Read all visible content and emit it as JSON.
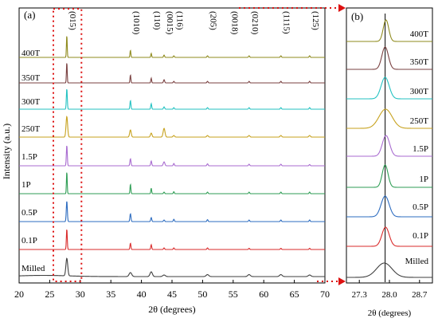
{
  "figure": {
    "panel_a_label": "(a)",
    "panel_b_label": "(b)"
  },
  "chart_data": [
    {
      "type": "line",
      "panel": "(a)",
      "xlabel": "2θ (degrees)",
      "ylabel": "Intensity (a.u.)",
      "xlim": [
        20,
        70
      ],
      "xticks": [
        20,
        25,
        30,
        35,
        40,
        45,
        50,
        55,
        60,
        65,
        70
      ],
      "grid": false,
      "highlight_region_2theta": [
        25.6,
        30.2
      ],
      "peak_annotations": [
        {
          "label": "(015)",
          "x": 27.8
        },
        {
          "label": "(1010)",
          "x": 38.2
        },
        {
          "label": "(110)",
          "x": 41.6
        },
        {
          "label": "(0015)",
          "x": 43.7
        },
        {
          "label": "(116)",
          "x": 45.3
        },
        {
          "label": "(205)",
          "x": 50.8
        },
        {
          "label": "(0018)",
          "x": 54.3
        },
        {
          "label": "(0210)",
          "x": 57.6
        },
        {
          "label": "(1115)",
          "x": 62.8
        },
        {
          "label": "(125)",
          "x": 67.5
        }
      ],
      "series": [
        {
          "name": "Milled",
          "color": "#3f3f3f",
          "peaks": [
            [
              27.8,
              22,
              0.35
            ],
            [
              38.2,
              5,
              0.5
            ],
            [
              41.6,
              6,
              0.45
            ],
            [
              43.7,
              2,
              0.5
            ],
            [
              50.8,
              2.5,
              0.5
            ],
            [
              57.6,
              2.5,
              0.5
            ],
            [
              62.8,
              2.5,
              0.5
            ],
            [
              67.5,
              2,
              0.5
            ]
          ]
        },
        {
          "name": "0.1P",
          "color": "#d92b2b",
          "peaks": [
            [
              27.8,
              26,
              0.17
            ],
            [
              38.2,
              8,
              0.18
            ],
            [
              41.6,
              6,
              0.18
            ],
            [
              43.7,
              2,
              0.2
            ],
            [
              45.3,
              2,
              0.2
            ],
            [
              50.8,
              2,
              0.2
            ],
            [
              57.6,
              1.5,
              0.2
            ],
            [
              62.8,
              1.5,
              0.2
            ],
            [
              67.5,
              1.5,
              0.2
            ]
          ]
        },
        {
          "name": "0.5P",
          "color": "#2d6cc0",
          "peaks": [
            [
              27.8,
              26,
              0.2
            ],
            [
              38.2,
              10,
              0.2
            ],
            [
              41.6,
              5,
              0.2
            ],
            [
              43.7,
              2,
              0.22
            ],
            [
              45.3,
              3,
              0.2
            ],
            [
              50.8,
              2.5,
              0.2
            ],
            [
              57.6,
              2,
              0.2
            ],
            [
              62.8,
              2,
              0.2
            ],
            [
              67.5,
              2,
              0.2
            ]
          ]
        },
        {
          "name": "1P",
          "color": "#2f9e55",
          "peaks": [
            [
              27.8,
              28,
              0.15
            ],
            [
              38.2,
              12,
              0.16
            ],
            [
              41.6,
              7,
              0.16
            ],
            [
              43.7,
              2,
              0.2
            ],
            [
              45.3,
              2.5,
              0.18
            ],
            [
              50.8,
              2,
              0.2
            ],
            [
              57.6,
              2,
              0.2
            ],
            [
              62.8,
              2,
              0.2
            ],
            [
              67.5,
              2,
              0.2
            ]
          ]
        },
        {
          "name": "1.5P",
          "color": "#a86bd0",
          "peaks": [
            [
              27.8,
              26,
              0.18
            ],
            [
              38.2,
              9,
              0.2
            ],
            [
              41.6,
              6,
              0.2
            ],
            [
              43.7,
              5,
              0.3
            ],
            [
              45.3,
              3,
              0.2
            ],
            [
              50.8,
              2.5,
              0.22
            ],
            [
              57.6,
              2,
              0.22
            ],
            [
              62.8,
              2,
              0.22
            ],
            [
              67.5,
              1.5,
              0.22
            ]
          ]
        },
        {
          "name": "250T",
          "color": "#c7a21e",
          "peaks": [
            [
              27.8,
              26,
              0.3
            ],
            [
              38.2,
              9,
              0.3
            ],
            [
              41.6,
              5,
              0.3
            ],
            [
              43.7,
              11,
              0.35
            ],
            [
              45.3,
              2,
              0.3
            ],
            [
              50.8,
              2,
              0.3
            ],
            [
              57.6,
              2,
              0.3
            ],
            [
              62.8,
              2,
              0.3
            ],
            [
              67.5,
              2,
              0.3
            ]
          ]
        },
        {
          "name": "300T",
          "color": "#23c2c2",
          "peaks": [
            [
              27.8,
              26,
              0.18
            ],
            [
              38.2,
              11,
              0.18
            ],
            [
              41.6,
              7,
              0.18
            ],
            [
              43.7,
              3,
              0.22
            ],
            [
              45.3,
              2,
              0.2
            ],
            [
              50.8,
              2,
              0.2
            ],
            [
              57.6,
              2,
              0.2
            ],
            [
              62.8,
              2,
              0.2
            ],
            [
              67.5,
              2,
              0.2
            ]
          ]
        },
        {
          "name": "350T",
          "color": "#7a4141",
          "peaks": [
            [
              27.8,
              26,
              0.15
            ],
            [
              38.2,
              10,
              0.16
            ],
            [
              41.6,
              6,
              0.16
            ],
            [
              43.7,
              4,
              0.22
            ],
            [
              45.3,
              2,
              0.2
            ],
            [
              50.8,
              2,
              0.2
            ],
            [
              57.6,
              2,
              0.2
            ],
            [
              62.8,
              2,
              0.2
            ],
            [
              67.5,
              2,
              0.2
            ]
          ]
        },
        {
          "name": "400T",
          "color": "#8f8b1e",
          "peaks": [
            [
              27.8,
              28,
              0.15
            ],
            [
              38.2,
              9,
              0.16
            ],
            [
              41.6,
              5,
              0.16
            ],
            [
              43.7,
              3,
              0.2
            ],
            [
              45.3,
              2,
              0.2
            ],
            [
              50.8,
              2,
              0.2
            ],
            [
              57.6,
              2,
              0.2
            ],
            [
              62.8,
              2,
              0.2
            ],
            [
              67.5,
              2,
              0.2
            ]
          ]
        }
      ]
    },
    {
      "type": "line",
      "panel": "(b)",
      "xlabel": "2θ (degrees)",
      "xlim": [
        27.0,
        29.0
      ],
      "xticks": [
        27.3,
        28.0,
        28.7
      ],
      "reference_line_x": 27.9,
      "series": [
        {
          "name": "Milled",
          "color": "#3f3f3f",
          "center": 27.88,
          "height": 18,
          "fwhm": 0.42
        },
        {
          "name": "0.1P",
          "color": "#d92b2b",
          "center": 27.91,
          "height": 24,
          "fwhm": 0.2
        },
        {
          "name": "0.5P",
          "color": "#2d6cc0",
          "center": 27.9,
          "height": 26,
          "fwhm": 0.22
        },
        {
          "name": "1P",
          "color": "#2f9e55",
          "center": 27.9,
          "height": 28,
          "fwhm": 0.16
        },
        {
          "name": "1.5P",
          "color": "#a86bd0",
          "center": 27.92,
          "height": 26,
          "fwhm": 0.2
        },
        {
          "name": "250T",
          "color": "#c7a21e",
          "center": 27.91,
          "height": 24,
          "fwhm": 0.36
        },
        {
          "name": "300T",
          "color": "#23c2c2",
          "center": 27.9,
          "height": 27,
          "fwhm": 0.22
        },
        {
          "name": "350T",
          "color": "#7a4141",
          "center": 27.9,
          "height": 28,
          "fwhm": 0.18
        },
        {
          "name": "400T",
          "color": "#8f8b1e",
          "center": 27.92,
          "height": 27,
          "fwhm": 0.15
        }
      ]
    }
  ]
}
